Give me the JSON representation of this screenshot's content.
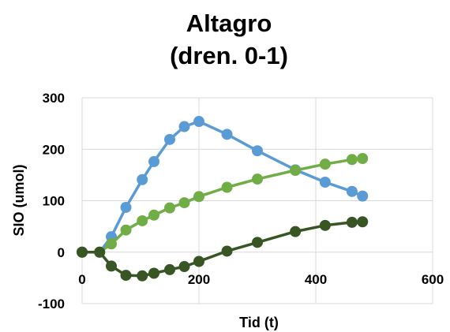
{
  "chart_data": {
    "type": "scatter",
    "title": [
      "Altagro",
      "(dren. 0-1)"
    ],
    "xlabel": "Tid (t)",
    "ylabel": "SIO (umol)",
    "xlim": [
      0,
      600
    ],
    "ylim": [
      -100,
      300
    ],
    "xticks": [
      0,
      200,
      400,
      600
    ],
    "yticks": [
      -100,
      0,
      100,
      200,
      300
    ],
    "grid": true,
    "legend": "none",
    "series": [
      {
        "color": "#5b9bd5",
        "x": [
          0,
          30,
          50,
          75,
          103,
          123,
          150,
          175,
          200,
          248,
          300,
          365,
          416,
          462,
          480
        ],
        "y": [
          0,
          0,
          30,
          87,
          141,
          176,
          219,
          244,
          254,
          229,
          197,
          160,
          136,
          118,
          109
        ]
      },
      {
        "color": "#70ad47",
        "x": [
          0,
          30,
          50,
          75,
          103,
          123,
          150,
          175,
          200,
          248,
          300,
          365,
          416,
          462,
          480
        ],
        "y": [
          0,
          0,
          16,
          43,
          61,
          72,
          86,
          96,
          108,
          126,
          142,
          159,
          171,
          180,
          182
        ]
      },
      {
        "color": "#375623",
        "x": [
          0,
          30,
          50,
          75,
          103,
          123,
          150,
          175,
          200,
          248,
          300,
          365,
          416,
          462,
          480
        ],
        "y": [
          0,
          0,
          -27,
          -45,
          -46,
          -41,
          -34,
          -28,
          -18,
          2,
          19,
          40,
          52,
          58,
          59
        ]
      }
    ]
  }
}
